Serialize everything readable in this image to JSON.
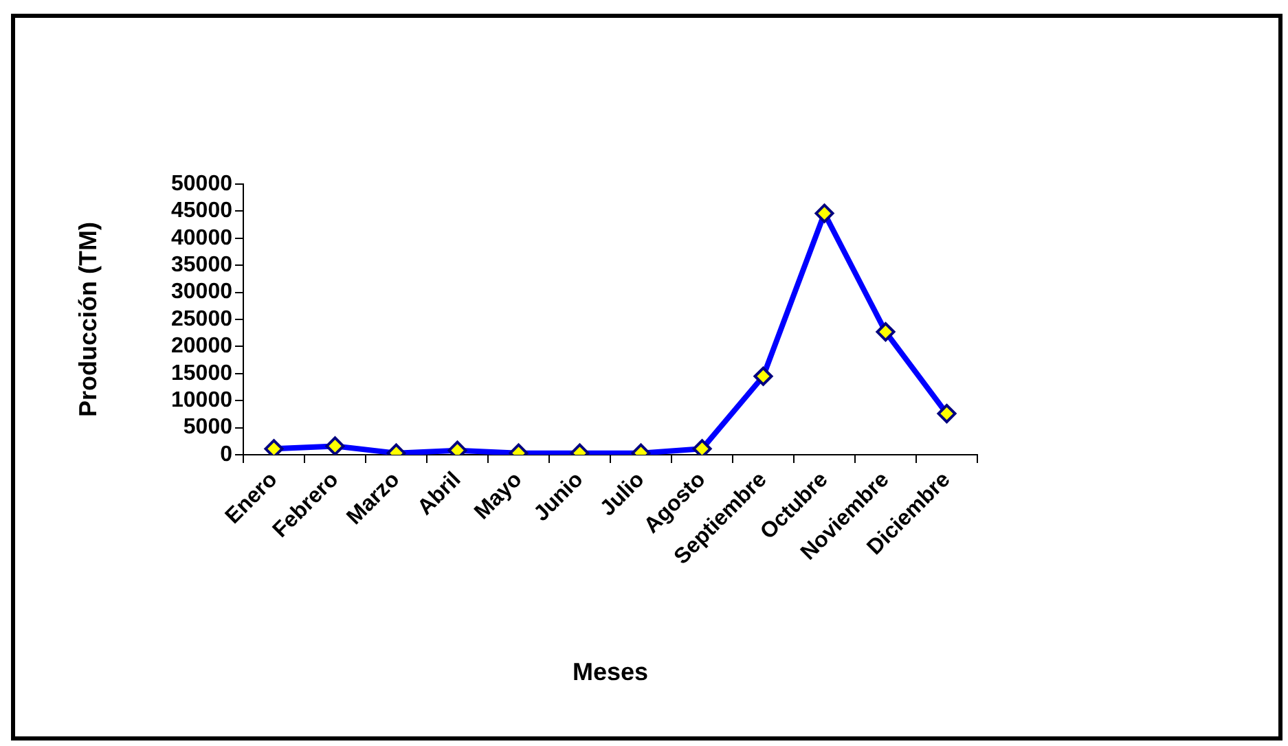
{
  "chart_data": {
    "type": "line",
    "xlabel": "Meses",
    "ylabel": "Producción (TM)",
    "categories": [
      "Enero",
      "Febrero",
      "Marzo",
      "Abril",
      "Mayo",
      "Junio",
      "Julio",
      "Agosto",
      "Septiembre",
      "Octubre",
      "Noviembre",
      "Diciembre"
    ],
    "series": [
      {
        "color": "#0000ff",
        "values": [
          1100,
          1600,
          300,
          800,
          300,
          300,
          300,
          1100,
          14500,
          44600,
          22700,
          7600
        ]
      }
    ],
    "ylim": [
      0,
      50000
    ],
    "yticks": [
      0,
      5000,
      10000,
      15000,
      20000,
      25000,
      30000,
      35000,
      40000,
      45000,
      50000
    ],
    "grid": false,
    "legend": false,
    "marker": "diamond",
    "line_style": "solid"
  }
}
